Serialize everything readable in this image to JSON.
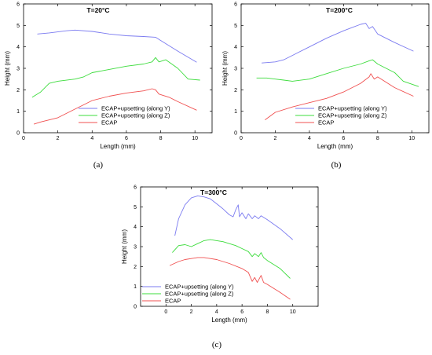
{
  "chart_data": [
    {
      "type": "line",
      "panel_label": "(a)",
      "title": "T=20°C",
      "xlabel": "Length (mm)",
      "ylabel": "Height (mm)",
      "xlim": [
        0,
        11
      ],
      "ylim": [
        0,
        6
      ],
      "xticks": [
        "0",
        "2",
        "4",
        "6",
        "8",
        "10"
      ],
      "yticks": [
        "0",
        "1",
        "2",
        "3",
        "4",
        "5",
        "6"
      ],
      "legend_position": "bottom-right",
      "series": [
        {
          "name": "ECAP+upsetting (along Y)",
          "color": "#7b7bf0",
          "x": [
            0.8,
            1.5,
            2.5,
            3.0,
            4.0,
            5.0,
            6.0,
            7.0,
            7.7,
            8.0,
            9.0,
            10.1
          ],
          "y": [
            4.6,
            4.65,
            4.75,
            4.78,
            4.72,
            4.6,
            4.52,
            4.48,
            4.45,
            4.3,
            3.8,
            3.28
          ]
        },
        {
          "name": "ECAP+upsetting (along Z)",
          "color": "#3cdc3c",
          "x": [
            0.5,
            1.0,
            1.5,
            2.0,
            3.0,
            3.5,
            4.0,
            5.0,
            6.0,
            7.0,
            7.5,
            7.7,
            7.9,
            8.3,
            9.0,
            9.6,
            10.3
          ],
          "y": [
            1.65,
            1.9,
            2.3,
            2.4,
            2.5,
            2.6,
            2.8,
            2.95,
            3.1,
            3.2,
            3.3,
            3.5,
            3.3,
            3.4,
            3.0,
            2.5,
            2.45
          ]
        },
        {
          "name": "ECAP",
          "color": "#f05050",
          "x": [
            0.6,
            1.0,
            2.0,
            3.0,
            3.5,
            4.0,
            5.0,
            6.0,
            7.0,
            7.5,
            7.7,
            7.9,
            8.5,
            9.0,
            10.1
          ],
          "y": [
            0.4,
            0.5,
            0.7,
            1.1,
            1.3,
            1.5,
            1.7,
            1.85,
            1.95,
            2.05,
            2.0,
            1.8,
            1.65,
            1.45,
            1.05
          ]
        }
      ]
    },
    {
      "type": "line",
      "panel_label": "(b)",
      "title": "T=200°C",
      "xlabel": "Length (mm)",
      "ylabel": "Height (mm)",
      "xlim": [
        0,
        11
      ],
      "ylim": [
        0,
        6
      ],
      "xticks": [
        "0",
        "2",
        "4",
        "6",
        "8",
        "10"
      ],
      "yticks": [
        "0",
        "1",
        "2",
        "3",
        "4",
        "5",
        "6"
      ],
      "legend_position": "bottom-right",
      "series": [
        {
          "name": "ECAP+upsetting (along Y)",
          "color": "#7b7bf0",
          "x": [
            1.2,
            2.0,
            2.5,
            3.0,
            4.0,
            5.0,
            6.0,
            6.5,
            7.0,
            7.3,
            7.5,
            7.7,
            8.0,
            9.0,
            10.1
          ],
          "y": [
            3.25,
            3.3,
            3.4,
            3.6,
            4.0,
            4.4,
            4.75,
            4.9,
            5.05,
            5.1,
            4.85,
            4.95,
            4.6,
            4.2,
            3.8
          ]
        },
        {
          "name": "ECAP+upsetting (along Z)",
          "color": "#3cdc3c",
          "x": [
            0.9,
            1.5,
            2.0,
            2.5,
            3.0,
            4.0,
            5.0,
            6.0,
            7.0,
            7.5,
            7.7,
            8.0,
            9.0,
            9.5,
            10.4
          ],
          "y": [
            2.55,
            2.55,
            2.5,
            2.45,
            2.4,
            2.5,
            2.75,
            3.0,
            3.2,
            3.35,
            3.4,
            3.2,
            2.8,
            2.4,
            2.15
          ]
        },
        {
          "name": "ECAP",
          "color": "#f05050",
          "x": [
            1.4,
            2.0,
            3.0,
            4.0,
            5.0,
            6.0,
            7.0,
            7.5,
            7.6,
            7.8,
            8.0,
            9.0,
            10.1
          ],
          "y": [
            0.6,
            0.95,
            1.2,
            1.4,
            1.6,
            1.9,
            2.3,
            2.6,
            2.75,
            2.5,
            2.6,
            2.1,
            1.7
          ]
        }
      ]
    },
    {
      "type": "line",
      "panel_label": "(c)",
      "title": "T=300°C",
      "xlabel": "Length (mm)",
      "ylabel": "Height (mm)",
      "xlim": [
        -2,
        12
      ],
      "ylim": [
        0,
        6
      ],
      "xticks": [
        "0",
        "2",
        "4",
        "6",
        "8",
        "10"
      ],
      "yticks": [
        "0",
        "1",
        "2",
        "3",
        "4",
        "5",
        "6"
      ],
      "legend_position": "bottom-left",
      "series": [
        {
          "name": "ECAP+upsetting (along Y)",
          "color": "#7b7bf0",
          "x": [
            0.7,
            1.0,
            1.5,
            2.0,
            2.5,
            3.0,
            3.5,
            4.0,
            4.5,
            5.0,
            5.3,
            5.5,
            5.7,
            5.8,
            6.0,
            6.3,
            6.5,
            6.8,
            7.0,
            7.3,
            7.5,
            8.0,
            9.0,
            10.0
          ],
          "y": [
            3.55,
            4.4,
            5.1,
            5.45,
            5.55,
            5.5,
            5.4,
            5.15,
            4.9,
            4.6,
            4.5,
            4.85,
            5.1,
            4.5,
            4.7,
            4.4,
            4.65,
            4.4,
            4.55,
            4.4,
            4.55,
            4.35,
            3.9,
            3.35
          ]
        },
        {
          "name": "ECAP+upsetting (along Z)",
          "color": "#3cdc3c",
          "x": [
            0.5,
            1.0,
            1.5,
            2.0,
            2.5,
            3.0,
            3.5,
            4.0,
            4.5,
            5.0,
            5.5,
            6.0,
            6.5,
            6.8,
            7.0,
            7.3,
            7.5,
            7.7,
            8.0,
            9.0,
            9.8
          ],
          "y": [
            2.7,
            3.05,
            3.1,
            3.0,
            3.15,
            3.3,
            3.35,
            3.3,
            3.25,
            3.15,
            3.05,
            2.9,
            2.75,
            2.5,
            2.65,
            2.5,
            2.7,
            2.45,
            2.3,
            1.9,
            1.4
          ]
        },
        {
          "name": "ECAP",
          "color": "#f05050",
          "x": [
            0.3,
            1.0,
            1.5,
            2.0,
            2.5,
            3.0,
            3.5,
            4.0,
            5.0,
            6.0,
            6.5,
            6.8,
            7.0,
            7.2,
            7.5,
            7.7,
            8.0,
            9.0,
            9.8
          ],
          "y": [
            2.05,
            2.25,
            2.35,
            2.4,
            2.45,
            2.45,
            2.4,
            2.35,
            2.15,
            1.9,
            1.7,
            1.25,
            1.45,
            1.2,
            1.55,
            1.2,
            1.1,
            0.7,
            0.35
          ]
        }
      ]
    }
  ]
}
